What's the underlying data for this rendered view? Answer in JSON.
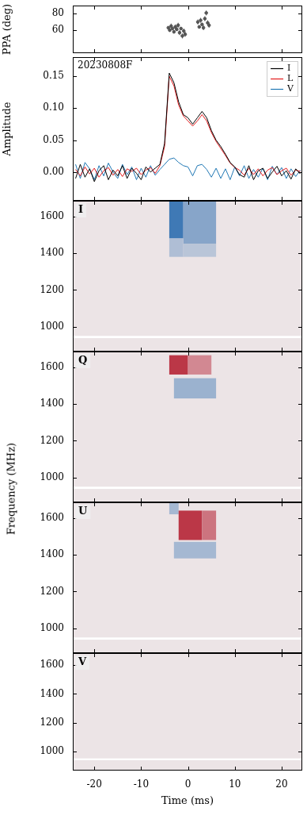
{
  "chart_data": [
    {
      "type": "scatter",
      "ylabel": "PPA (deg)",
      "color": "#555555",
      "marker": "circle",
      "x": [
        -4.2,
        -3.9,
        -3.6,
        -3.3,
        -3.0,
        -2.7,
        -2.4,
        -2.1,
        -1.8,
        -1.5,
        -1.2,
        -0.9,
        -0.6,
        2.1,
        2.4,
        2.7,
        3.0,
        3.3,
        3.6,
        3.9,
        4.2,
        4.5
      ],
      "values": [
        63,
        60,
        65,
        62,
        58,
        64,
        61,
        66,
        57,
        62,
        53,
        59,
        55,
        70,
        64,
        72,
        67,
        63,
        74,
        81,
        69,
        66
      ],
      "errors": [
        2,
        2,
        3,
        2,
        2,
        3,
        2,
        3,
        3,
        2,
        3,
        3,
        3,
        3,
        2,
        3,
        2,
        3,
        3,
        3,
        3,
        3
      ],
      "xlim": [
        -24.6,
        24.4
      ],
      "xticks": [
        -20,
        -10,
        0,
        10,
        20
      ],
      "ylim": [
        32,
        90
      ],
      "yticks": [
        60,
        80
      ],
      "tick_labels": "y"
    },
    {
      "type": "line",
      "ylabel": "Amplitude",
      "annotation": "20230808F",
      "legend": "upper right",
      "x": [
        -24,
        -23,
        -22,
        -21,
        -20,
        -19,
        -18,
        -17,
        -16,
        -15,
        -14,
        -13,
        -12,
        -11,
        -10,
        -9,
        -8,
        -7,
        -6,
        -5,
        -4,
        -3,
        -2,
        -1,
        0,
        1,
        2,
        3,
        4,
        5,
        6,
        7,
        8,
        9,
        10,
        11,
        12,
        13,
        14,
        15,
        16,
        17,
        18,
        19,
        20,
        21,
        22,
        23,
        24
      ],
      "series": [
        {
          "name": "I",
          "color": "#000000",
          "values": [
            -0.01,
            0.012,
            -0.008,
            0.005,
            -0.015,
            0.002,
            0.01,
            -0.012,
            0.003,
            -0.006,
            0.01,
            -0.01,
            0.006,
            -0.002,
            -0.012,
            0.008,
            0.0,
            0.006,
            0.012,
            0.045,
            0.155,
            0.14,
            0.11,
            0.09,
            0.085,
            0.075,
            0.085,
            0.095,
            0.085,
            0.065,
            0.05,
            0.04,
            0.028,
            0.015,
            0.008,
            -0.004,
            -0.008,
            0.01,
            -0.012,
            0.002,
            0.006,
            -0.01,
            0.0,
            0.009,
            -0.006,
            0.002,
            -0.011,
            0.005,
            -0.003
          ]
        },
        {
          "name": "L",
          "color": "#e31a1c",
          "values": [
            0.004,
            -0.006,
            0.008,
            -0.003,
            0.006,
            -0.008,
            0.002,
            0.007,
            -0.005,
            0.004,
            -0.007,
            0.005,
            0.001,
            0.006,
            -0.004,
            0.003,
            0.007,
            -0.002,
            0.01,
            0.04,
            0.15,
            0.135,
            0.105,
            0.088,
            0.08,
            0.072,
            0.08,
            0.09,
            0.08,
            0.062,
            0.048,
            0.037,
            0.026,
            0.014,
            0.007,
            0.003,
            -0.005,
            0.006,
            -0.004,
            0.005,
            -0.006,
            0.003,
            0.007,
            -0.004,
            0.002,
            0.006,
            -0.005,
            0.003,
            0.001
          ]
        },
        {
          "name": "V",
          "color": "#1f77b4",
          "values": [
            0.012,
            -0.01,
            0.015,
            0.005,
            -0.012,
            0.01,
            -0.006,
            0.014,
            0.0,
            -0.01,
            0.012,
            -0.004,
            0.008,
            -0.012,
            0.006,
            -0.008,
            0.01,
            -0.005,
            0.004,
            0.012,
            0.02,
            0.022,
            0.015,
            0.01,
            0.008,
            -0.006,
            0.01,
            0.012,
            0.004,
            -0.008,
            0.006,
            -0.01,
            0.005,
            -0.012,
            0.008,
            -0.006,
            0.01,
            -0.01,
            0.004,
            -0.008,
            0.006,
            -0.012,
            0.009,
            -0.004,
            0.007,
            -0.01,
            0.005,
            -0.007,
            0.003
          ]
        }
      ],
      "xlim": [
        -24.6,
        24.4
      ],
      "xticks": [
        -20,
        -10,
        0,
        10,
        20
      ],
      "ylim": [
        -0.045,
        0.18
      ],
      "yticks": [
        {
          "value": 0,
          "label": "0.00"
        },
        {
          "value": 0.05,
          "label": "0.05"
        },
        {
          "value": 0.1,
          "label": "0.10"
        },
        {
          "value": 0.15,
          "label": "0.15"
        }
      ],
      "tick_labels": "y"
    },
    {
      "type": "heatmap",
      "label": "I",
      "ylabel": "Frequency (MHz)",
      "xlim": [
        -24.6,
        24.4
      ],
      "xticks": [
        -20,
        -10,
        0,
        10,
        20
      ],
      "ylim": [
        865,
        1685
      ],
      "yticks": [
        1000,
        1200,
        1400,
        1600
      ],
      "zlim": [
        -1,
        1
      ],
      "masked_freq": [
        938,
        950
      ],
      "cells": [
        {
          "time": [
            -4,
            -1
          ],
          "freq": [
            1480,
            1685
          ],
          "value": 0.85
        },
        {
          "time": [
            -1,
            6
          ],
          "freq": [
            1450,
            1685
          ],
          "value": 0.5
        },
        {
          "time": [
            -4,
            -1
          ],
          "freq": [
            1380,
            1480
          ],
          "value": 0.3
        },
        {
          "time": [
            -1,
            6
          ],
          "freq": [
            1380,
            1450
          ],
          "value": 0.25
        }
      ],
      "tick_labels": "y"
    },
    {
      "type": "heatmap",
      "label": "Q",
      "xlim": [
        -24.6,
        24.4
      ],
      "xticks": [
        -20,
        -10,
        0,
        10,
        20
      ],
      "ylim": [
        865,
        1685
      ],
      "yticks": [
        1000,
        1200,
        1400,
        1600
      ],
      "zlim": [
        -1,
        1
      ],
      "masked_freq": [
        938,
        950
      ],
      "cells": [
        {
          "time": [
            -4,
            0
          ],
          "freq": [
            1560,
            1665
          ],
          "value": -0.85
        },
        {
          "time": [
            0,
            5
          ],
          "freq": [
            1560,
            1665
          ],
          "value": -0.45
        },
        {
          "time": [
            -3,
            6
          ],
          "freq": [
            1430,
            1540
          ],
          "value": 0.4
        }
      ],
      "tick_labels": "y"
    },
    {
      "type": "heatmap",
      "label": "U",
      "xlim": [
        -24.6,
        24.4
      ],
      "xticks": [
        -20,
        -10,
        0,
        10,
        20
      ],
      "ylim": [
        865,
        1685
      ],
      "yticks": [
        1000,
        1200,
        1400,
        1600
      ],
      "zlim": [
        -1,
        1
      ],
      "masked_freq": [
        938,
        950
      ],
      "cells": [
        {
          "time": [
            -4,
            -2
          ],
          "freq": [
            1620,
            1685
          ],
          "value": 0.35
        },
        {
          "time": [
            -2,
            3
          ],
          "freq": [
            1480,
            1640
          ],
          "value": -0.85
        },
        {
          "time": [
            3,
            6
          ],
          "freq": [
            1480,
            1640
          ],
          "value": -0.55
        },
        {
          "time": [
            -3,
            6
          ],
          "freq": [
            1380,
            1470
          ],
          "value": 0.35
        }
      ],
      "tick_labels": "y"
    },
    {
      "type": "heatmap",
      "label": "V",
      "xlabel": "Time (ms)",
      "xlim": [
        -24.6,
        24.4
      ],
      "xticks": [
        -20,
        -10,
        0,
        10,
        20
      ],
      "ylim": [
        865,
        1685
      ],
      "yticks": [
        1000,
        1200,
        1400,
        1600
      ],
      "zlim": [
        -1,
        1
      ],
      "masked_freq": [
        938,
        950
      ],
      "cells": []
    }
  ]
}
